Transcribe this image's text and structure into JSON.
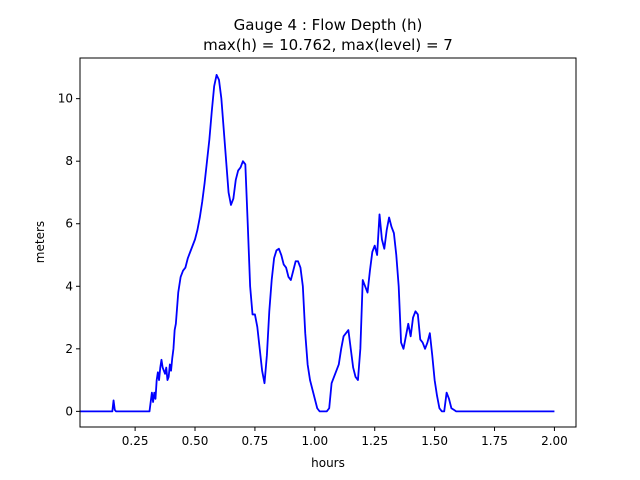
{
  "chart_data": {
    "type": "line",
    "title_line1": "Gauge 4 : Flow Depth (h)",
    "title_line2": "max(h) =  10.762,    max(level) = 7",
    "xlabel": "hours",
    "ylabel": "meters",
    "xlim": [
      0.02,
      2.09
    ],
    "ylim": [
      -0.5,
      11.3
    ],
    "xticks": [
      0.25,
      0.5,
      0.75,
      1.0,
      1.25,
      1.5,
      1.75,
      2.0
    ],
    "xtick_labels": [
      "0.25",
      "0.50",
      "0.75",
      "1.00",
      "1.25",
      "1.50",
      "1.75",
      "2.00"
    ],
    "yticks": [
      0,
      2,
      4,
      6,
      8,
      10
    ],
    "ytick_labels": [
      "0",
      "2",
      "4",
      "6",
      "8",
      "10"
    ],
    "grid": false,
    "series": [
      {
        "color": "#0000ff",
        "x": [
          0.0,
          0.155,
          0.16,
          0.165,
          0.17,
          0.31,
          0.32,
          0.325,
          0.33,
          0.335,
          0.34,
          0.345,
          0.35,
          0.355,
          0.36,
          0.365,
          0.37,
          0.375,
          0.38,
          0.385,
          0.39,
          0.395,
          0.4,
          0.405,
          0.41,
          0.415,
          0.42,
          0.43,
          0.44,
          0.45,
          0.46,
          0.47,
          0.48,
          0.49,
          0.5,
          0.51,
          0.52,
          0.53,
          0.54,
          0.55,
          0.56,
          0.57,
          0.58,
          0.59,
          0.6,
          0.61,
          0.62,
          0.63,
          0.64,
          0.65,
          0.66,
          0.67,
          0.68,
          0.69,
          0.7,
          0.71,
          0.72,
          0.73,
          0.74,
          0.75,
          0.76,
          0.77,
          0.78,
          0.79,
          0.8,
          0.81,
          0.82,
          0.83,
          0.84,
          0.85,
          0.86,
          0.87,
          0.88,
          0.89,
          0.9,
          0.91,
          0.92,
          0.93,
          0.94,
          0.95,
          0.96,
          0.97,
          0.98,
          0.99,
          1.0,
          1.01,
          1.02,
          1.03,
          1.04,
          1.05,
          1.06,
          1.07,
          1.08,
          1.09,
          1.1,
          1.11,
          1.12,
          1.13,
          1.14,
          1.15,
          1.16,
          1.17,
          1.18,
          1.19,
          1.2,
          1.21,
          1.22,
          1.23,
          1.24,
          1.25,
          1.26,
          1.27,
          1.28,
          1.29,
          1.3,
          1.31,
          1.32,
          1.33,
          1.34,
          1.35,
          1.36,
          1.37,
          1.38,
          1.39,
          1.4,
          1.41,
          1.42,
          1.43,
          1.44,
          1.45,
          1.46,
          1.47,
          1.48,
          1.49,
          1.5,
          1.51,
          1.52,
          1.53,
          1.54,
          1.55,
          1.56,
          1.57,
          1.58,
          1.59,
          1.6,
          1.61,
          1.62,
          1.63,
          1.64,
          1.65,
          1.66,
          1.67,
          1.68,
          1.69,
          1.7,
          1.71,
          1.72,
          1.73,
          1.74,
          1.75,
          1.76,
          1.77,
          1.78,
          1.79,
          1.8,
          2.0
        ],
        "y": [
          0.0,
          0.0,
          0.35,
          0.05,
          0.0,
          0.0,
          0.6,
          0.3,
          0.6,
          0.4,
          1.0,
          1.25,
          1.0,
          1.4,
          1.65,
          1.4,
          1.3,
          1.2,
          1.4,
          1.0,
          1.1,
          1.5,
          1.3,
          1.7,
          2.0,
          2.6,
          2.8,
          3.8,
          4.3,
          4.5,
          4.6,
          4.9,
          5.1,
          5.3,
          5.5,
          5.8,
          6.2,
          6.7,
          7.3,
          8.0,
          8.7,
          9.6,
          10.4,
          10.76,
          10.6,
          10.0,
          9.0,
          8.0,
          7.0,
          6.6,
          6.8,
          7.4,
          7.7,
          7.8,
          8.0,
          7.9,
          6.0,
          4.0,
          3.1,
          3.1,
          2.7,
          2.0,
          1.3,
          0.9,
          1.8,
          3.2,
          4.2,
          4.9,
          5.15,
          5.2,
          5.0,
          4.7,
          4.6,
          4.3,
          4.2,
          4.5,
          4.8,
          4.8,
          4.6,
          4.0,
          2.5,
          1.5,
          1.0,
          0.7,
          0.4,
          0.1,
          0.0,
          0.0,
          0.0,
          0.0,
          0.1,
          0.9,
          1.1,
          1.3,
          1.5,
          2.0,
          2.4,
          2.5,
          2.6,
          2.0,
          1.4,
          1.1,
          1.0,
          2.0,
          4.2,
          4.0,
          3.8,
          4.5,
          5.1,
          5.3,
          5.0,
          6.3,
          5.5,
          5.2,
          5.8,
          6.2,
          5.9,
          5.7,
          5.0,
          4.0,
          2.2,
          2.0,
          2.4,
          2.8,
          2.4,
          3.0,
          3.2,
          3.1,
          2.3,
          2.2,
          2.0,
          2.2,
          2.5,
          1.8,
          1.0,
          0.5,
          0.1,
          0.0,
          0.0,
          0.6,
          0.4,
          0.1,
          0.05,
          0.0,
          0.0,
          0.0,
          0.0,
          0.0,
          0.0,
          0.0,
          0.0,
          0.0,
          0.0,
          0.0,
          0.0,
          0.0,
          0.0,
          0.0,
          0.0,
          0.0,
          0.0,
          0.0,
          0.0,
          0.0,
          0.0,
          0.0
        ]
      }
    ]
  }
}
